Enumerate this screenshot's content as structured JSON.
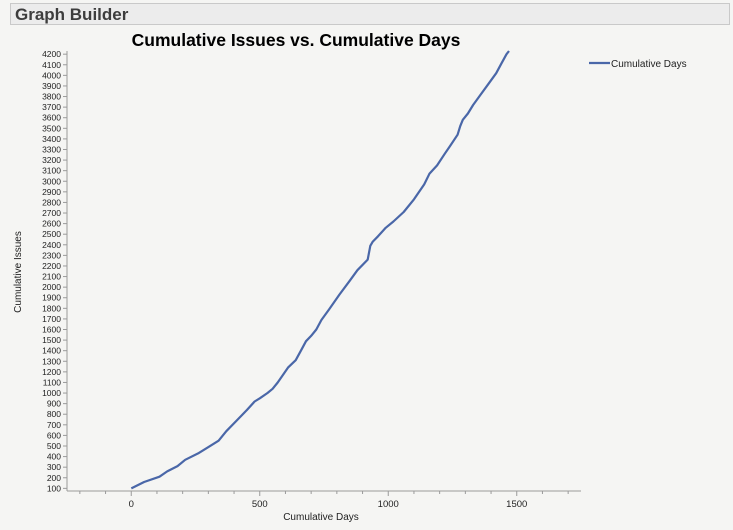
{
  "window": {
    "title": "Graph Builder"
  },
  "colors": {
    "series": "#4a67a8",
    "axis": "#9a9a9a",
    "background": "#f5f5f3"
  },
  "chart_data": {
    "type": "line",
    "title": "Cumulative Issues vs. Cumulative Days",
    "xlabel": "Cumulative Days",
    "ylabel": "Cumulative Issues",
    "xlim": [
      -250,
      1750
    ],
    "ylim": [
      75,
      4230
    ],
    "x_ticks": [
      0,
      500,
      1000,
      1500
    ],
    "y_ticks": [
      100,
      200,
      300,
      400,
      500,
      600,
      700,
      800,
      900,
      1000,
      1100,
      1200,
      1300,
      1400,
      1500,
      1600,
      1700,
      1800,
      1900,
      2000,
      2100,
      2200,
      2300,
      2400,
      2500,
      2600,
      2700,
      2800,
      2900,
      3000,
      3100,
      3200,
      3300,
      3400,
      3500,
      3600,
      3700,
      3800,
      3900,
      4000,
      4100,
      4200
    ],
    "grid": false,
    "legend": {
      "position": "top-right",
      "entries": [
        "Cumulative Days"
      ]
    },
    "series": [
      {
        "name": "Cumulative Days",
        "x": [
          0,
          50,
          110,
          140,
          180,
          210,
          260,
          300,
          340,
          370,
          410,
          450,
          480,
          500,
          530,
          550,
          570,
          590,
          610,
          640,
          660,
          680,
          700,
          720,
          740,
          770,
          810,
          850,
          880,
          920,
          930,
          940,
          960,
          990,
          1020,
          1060,
          1100,
          1140,
          1160,
          1190,
          1220,
          1240,
          1270,
          1280,
          1290,
          1310,
          1330,
          1360,
          1390,
          1420,
          1440,
          1460,
          1470
        ],
        "y": [
          100,
          160,
          210,
          260,
          310,
          370,
          430,
          490,
          550,
          640,
          740,
          840,
          920,
          950,
          1000,
          1040,
          1100,
          1170,
          1240,
          1310,
          1400,
          1490,
          1540,
          1600,
          1690,
          1790,
          1930,
          2060,
          2160,
          2260,
          2390,
          2430,
          2480,
          2560,
          2620,
          2710,
          2830,
          2970,
          3070,
          3150,
          3260,
          3330,
          3440,
          3520,
          3580,
          3640,
          3720,
          3820,
          3920,
          4020,
          4110,
          4200,
          4230
        ]
      }
    ]
  }
}
